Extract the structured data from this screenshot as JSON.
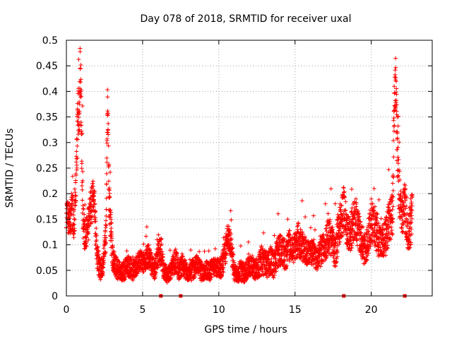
{
  "chart_data": {
    "type": "scatter",
    "title": "Day 078 of 2018, SRMTID for receiver uxal",
    "xlabel": "GPS time / hours",
    "ylabel": "SRMTID / TECUs",
    "xlim": [
      0,
      24
    ],
    "ylim": [
      0,
      0.5
    ],
    "grid": true,
    "marker": "plus",
    "marker_color": "#ff0000",
    "x_ticks": [
      0,
      5,
      10,
      15,
      20
    ],
    "x_tick_labels": [
      "0",
      "5",
      "10",
      "15",
      "20"
    ],
    "y_ticks": [
      0,
      0.05,
      0.1,
      0.15,
      0.2,
      0.25,
      0.3,
      0.35,
      0.4,
      0.45,
      0.5
    ],
    "y_tick_labels": [
      "0",
      "0.05",
      "0.1",
      "0.15",
      "0.2",
      "0.25",
      "0.3",
      "0.35",
      "0.4",
      "0.45",
      "0.5"
    ],
    "series": [
      {
        "name": "SRMTID",
        "color": "#ff0000",
        "x": [
          0.0,
          0.2,
          0.4,
          0.5,
          0.6,
          0.7,
          0.8,
          0.85,
          0.9,
          0.95,
          1.0,
          1.05,
          1.1,
          1.2,
          1.4,
          1.6,
          1.8,
          2.0,
          2.2,
          2.4,
          2.6,
          2.7,
          2.75,
          2.8,
          2.9,
          3.0,
          3.2,
          3.4,
          3.6,
          3.8,
          4.0,
          4.2,
          4.4,
          4.6,
          4.8,
          5.0,
          5.2,
          5.4,
          5.6,
          5.8,
          6.0,
          6.2,
          6.4,
          6.6,
          6.8,
          7.0,
          7.2,
          7.4,
          7.6,
          7.8,
          8.0,
          8.2,
          8.4,
          8.6,
          8.8,
          9.0,
          9.2,
          9.4,
          9.6,
          9.8,
          10.0,
          10.2,
          10.4,
          10.6,
          10.8,
          11.0,
          11.2,
          11.4,
          11.6,
          11.8,
          12.0,
          12.2,
          12.4,
          12.6,
          12.8,
          13.0,
          13.2,
          13.4,
          13.6,
          13.8,
          14.0,
          14.2,
          14.4,
          14.6,
          14.8,
          15.0,
          15.2,
          15.4,
          15.6,
          15.8,
          16.0,
          16.2,
          16.4,
          16.6,
          16.8,
          17.0,
          17.2,
          17.4,
          17.6,
          17.8,
          18.0,
          18.2,
          18.4,
          18.6,
          18.8,
          19.0,
          19.2,
          19.4,
          19.6,
          19.8,
          20.0,
          20.2,
          20.4,
          20.6,
          20.8,
          21.0,
          21.2,
          21.4,
          21.5,
          21.6,
          21.7,
          21.8,
          22.0,
          22.2,
          22.4,
          22.6,
          22.7
        ],
        "values": [
          0.16,
          0.15,
          0.17,
          0.14,
          0.19,
          0.3,
          0.37,
          0.35,
          0.45,
          0.4,
          0.3,
          0.22,
          0.15,
          0.12,
          0.13,
          0.17,
          0.2,
          0.08,
          0.05,
          0.06,
          0.12,
          0.39,
          0.3,
          0.18,
          0.14,
          0.08,
          0.06,
          0.05,
          0.045,
          0.05,
          0.06,
          0.055,
          0.05,
          0.06,
          0.07,
          0.065,
          0.07,
          0.08,
          0.06,
          0.05,
          0.08,
          0.09,
          0.05,
          0.04,
          0.045,
          0.06,
          0.07,
          0.05,
          0.06,
          0.05,
          0.04,
          0.05,
          0.055,
          0.06,
          0.05,
          0.045,
          0.05,
          0.05,
          0.055,
          0.06,
          0.05,
          0.06,
          0.08,
          0.12,
          0.1,
          0.05,
          0.04,
          0.05,
          0.045,
          0.05,
          0.06,
          0.055,
          0.05,
          0.06,
          0.07,
          0.065,
          0.06,
          0.07,
          0.06,
          0.08,
          0.09,
          0.085,
          0.08,
          0.1,
          0.09,
          0.095,
          0.11,
          0.1,
          0.09,
          0.085,
          0.08,
          0.09,
          0.07,
          0.08,
          0.09,
          0.1,
          0.12,
          0.11,
          0.08,
          0.12,
          0.15,
          0.17,
          0.13,
          0.12,
          0.14,
          0.15,
          0.12,
          0.1,
          0.09,
          0.11,
          0.15,
          0.14,
          0.12,
          0.1,
          0.11,
          0.12,
          0.15,
          0.16,
          0.35,
          0.42,
          0.3,
          0.22,
          0.15,
          0.18,
          0.12,
          0.14,
          0.18
        ],
        "spread": [
          0.03,
          0.035,
          0.04,
          0.03,
          0.035,
          0.06,
          0.05,
          0.05,
          0.04,
          0.06,
          0.07,
          0.06,
          0.04,
          0.03,
          0.03,
          0.04,
          0.03,
          0.03,
          0.02,
          0.02,
          0.03,
          0.02,
          0.04,
          0.04,
          0.04,
          0.03,
          0.02,
          0.02,
          0.015,
          0.02,
          0.02,
          0.02,
          0.02,
          0.02,
          0.02,
          0.02,
          0.02,
          0.025,
          0.02,
          0.02,
          0.025,
          0.03,
          0.02,
          0.015,
          0.015,
          0.02,
          0.025,
          0.02,
          0.02,
          0.02,
          0.015,
          0.02,
          0.02,
          0.02,
          0.02,
          0.015,
          0.02,
          0.02,
          0.02,
          0.02,
          0.02,
          0.025,
          0.03,
          0.025,
          0.03,
          0.02,
          0.015,
          0.02,
          0.02,
          0.02,
          0.02,
          0.02,
          0.02,
          0.025,
          0.03,
          0.025,
          0.025,
          0.03,
          0.025,
          0.03,
          0.03,
          0.03,
          0.03,
          0.03,
          0.03,
          0.03,
          0.035,
          0.03,
          0.03,
          0.025,
          0.025,
          0.03,
          0.02,
          0.025,
          0.03,
          0.03,
          0.035,
          0.035,
          0.03,
          0.04,
          0.04,
          0.045,
          0.04,
          0.035,
          0.04,
          0.04,
          0.04,
          0.035,
          0.03,
          0.035,
          0.045,
          0.04,
          0.04,
          0.03,
          0.035,
          0.04,
          0.04,
          0.05,
          0.06,
          0.05,
          0.06,
          0.05,
          0.04,
          0.045,
          0.04,
          0.045,
          0.04
        ]
      }
    ],
    "baseline_markers": {
      "x": [
        6.2,
        7.5,
        18.2,
        22.2
      ],
      "y": [
        0,
        0,
        0,
        0
      ]
    }
  }
}
